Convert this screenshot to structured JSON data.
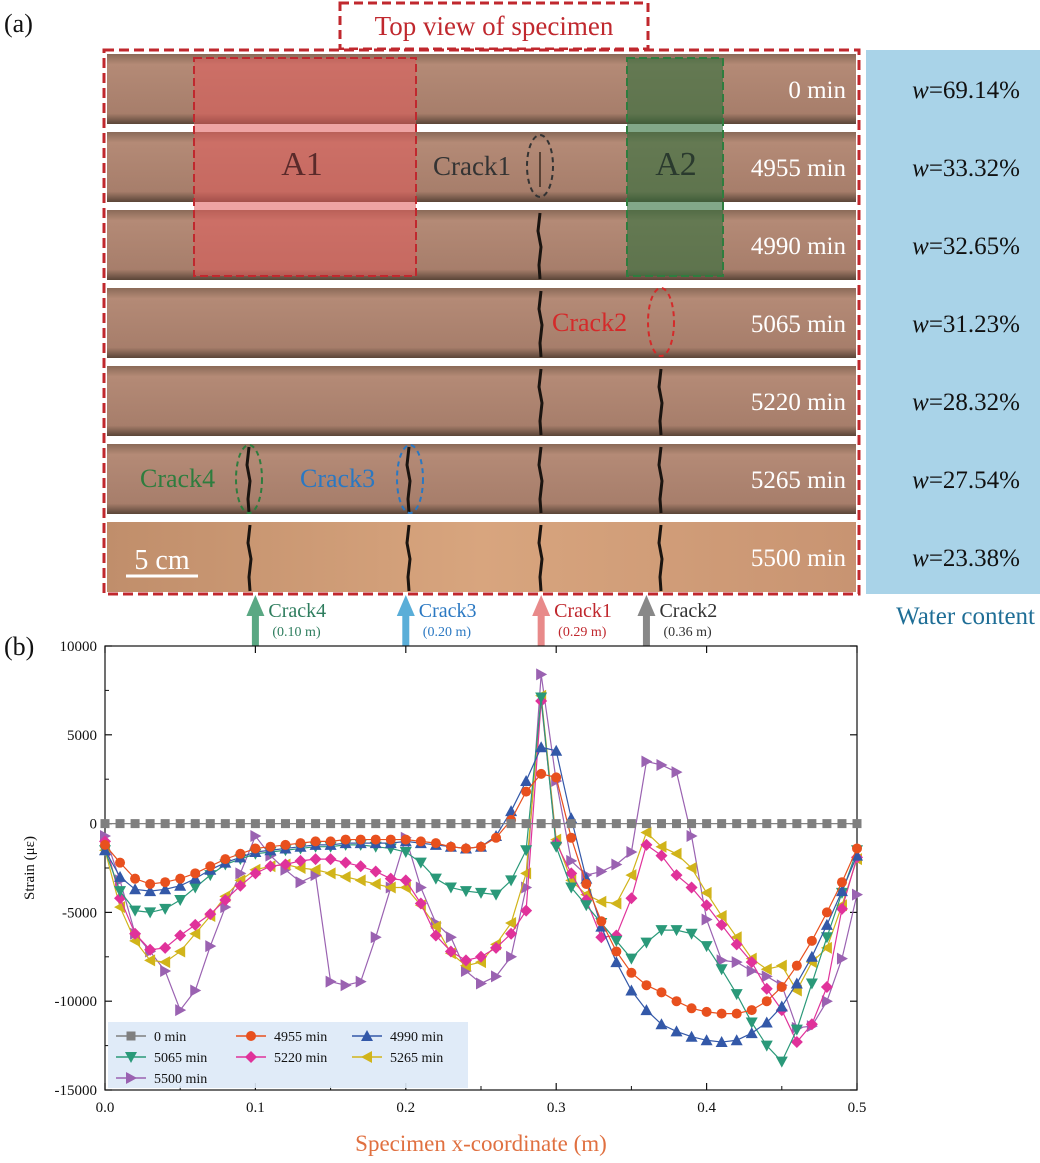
{
  "panel_a": {
    "label": "(a)",
    "title": "Top view of specimen",
    "scale_bar": "5 cm",
    "water_content_label": "Water content",
    "rows": [
      {
        "time": "0 min",
        "w_prefix": "w",
        "w_value": "=69.14%"
      },
      {
        "time": "4955 min",
        "w_prefix": "w",
        "w_value": "=33.32%"
      },
      {
        "time": "4990 min",
        "w_prefix": "w",
        "w_value": "=32.65%"
      },
      {
        "time": "5065 min",
        "w_prefix": "w",
        "w_value": "=31.23%"
      },
      {
        "time": "5220 min",
        "w_prefix": "w",
        "w_value": "=28.32%"
      },
      {
        "time": "5265 min",
        "w_prefix": "w",
        "w_value": "=27.54%"
      },
      {
        "time": "5500 min",
        "w_prefix": "w",
        "w_value": "=23.38%"
      }
    ],
    "regions": [
      {
        "label": "A1",
        "color": "#e05a5a"
      },
      {
        "label": "A2",
        "color": "#2e7d3e"
      }
    ],
    "crack_marks": [
      {
        "label": "Crack1",
        "color": "#333333"
      },
      {
        "label": "Crack2",
        "color": "#d42a2a"
      },
      {
        "label": "Crack3",
        "color": "#2a78c2"
      },
      {
        "label": "Crack4",
        "color": "#2e7d3e"
      }
    ]
  },
  "panel_b": {
    "label": "(b)",
    "arrows": [
      {
        "name": "Crack4",
        "position": "(0.10 m)",
        "x": 0.1,
        "color": "#5aa883"
      },
      {
        "name": "Crack3",
        "position": "(0.20 m)",
        "x": 0.2,
        "color": "#5aaed8"
      },
      {
        "name": "Crack1",
        "position": "(0.29 m)",
        "x": 0.29,
        "color": "#e88a8a"
      },
      {
        "name": "Crack2",
        "position": "(0.36 m)",
        "x": 0.36,
        "color": "#888888"
      }
    ]
  },
  "chart_data": {
    "type": "line",
    "xlabel": "Specimen x-coordinate (m)",
    "ylabel": "Strain (με)",
    "xlim": [
      0,
      0.5
    ],
    "ylim": [
      -15000,
      10000
    ],
    "x_ticks": [
      "0.0",
      "0.1",
      "0.2",
      "0.3",
      "0.4",
      "0.5"
    ],
    "y_ticks": [
      "10000",
      "5000",
      "0",
      "-5000",
      "-10000",
      "-15000"
    ],
    "legend_position": "bottom-left",
    "x": [
      0.0,
      0.01,
      0.02,
      0.03,
      0.04,
      0.05,
      0.06,
      0.07,
      0.08,
      0.09,
      0.1,
      0.11,
      0.12,
      0.13,
      0.14,
      0.15,
      0.16,
      0.17,
      0.18,
      0.19,
      0.2,
      0.21,
      0.22,
      0.23,
      0.24,
      0.25,
      0.26,
      0.27,
      0.28,
      0.29,
      0.3,
      0.31,
      0.32,
      0.33,
      0.34,
      0.35,
      0.36,
      0.37,
      0.38,
      0.39,
      0.4,
      0.41,
      0.42,
      0.43,
      0.44,
      0.45,
      0.46,
      0.47,
      0.48,
      0.49,
      0.5
    ],
    "series": [
      {
        "name": "0 min",
        "color": "#7f7f7f",
        "marker": "square",
        "values": [
          0,
          0,
          0,
          0,
          0,
          0,
          0,
          0,
          0,
          0,
          0,
          0,
          0,
          0,
          0,
          0,
          0,
          0,
          0,
          0,
          0,
          0,
          0,
          0,
          0,
          0,
          0,
          0,
          0,
          0,
          0,
          0,
          0,
          0,
          0,
          0,
          0,
          0,
          0,
          0,
          0,
          0,
          0,
          0,
          0,
          0,
          0,
          0,
          0,
          0,
          0
        ]
      },
      {
        "name": "4955 min",
        "color": "#e8501e",
        "marker": "circle",
        "values": [
          -1200,
          -2200,
          -3100,
          -3400,
          -3300,
          -3100,
          -2800,
          -2400,
          -2000,
          -1700,
          -1400,
          -1300,
          -1200,
          -1100,
          -1000,
          -1000,
          -900,
          -900,
          -900,
          -900,
          -900,
          -1000,
          -1100,
          -1300,
          -1400,
          -1300,
          -800,
          200,
          1800,
          2800,
          2600,
          -800,
          -3400,
          -5500,
          -7200,
          -8400,
          -9100,
          -9500,
          -10000,
          -10400,
          -10600,
          -10700,
          -10700,
          -10500,
          -10000,
          -9200,
          -8000,
          -6600,
          -5000,
          -3300,
          -1400
        ]
      },
      {
        "name": "4990 min",
        "color": "#3358a8",
        "marker": "triangle-up",
        "values": [
          -1500,
          -3000,
          -3700,
          -3800,
          -3700,
          -3500,
          -3100,
          -2600,
          -2200,
          -1900,
          -1600,
          -1500,
          -1400,
          -1300,
          -1200,
          -1200,
          -1100,
          -1100,
          -1100,
          -1100,
          -1000,
          -1100,
          -1200,
          -1300,
          -1400,
          -1300,
          -700,
          700,
          2400,
          4300,
          4100,
          300,
          -3100,
          -5800,
          -7800,
          -9400,
          -10500,
          -11300,
          -11700,
          -12000,
          -12200,
          -12300,
          -12200,
          -11800,
          -11200,
          -10300,
          -9000,
          -7500,
          -5700,
          -3800,
          -1800
        ]
      },
      {
        "name": "5065 min",
        "color": "#2a9979",
        "marker": "triangle-down",
        "values": [
          -1500,
          -3800,
          -4900,
          -5000,
          -4800,
          -4300,
          -3600,
          -2900,
          -2300,
          -2000,
          -1700,
          -1600,
          -1500,
          -1400,
          -1300,
          -1300,
          -1200,
          -1200,
          -1300,
          -1400,
          -1600,
          -2200,
          -3100,
          -3600,
          -3800,
          -3900,
          -4000,
          -3200,
          -1500,
          7100,
          -1300,
          -3600,
          -4600,
          -5600,
          -6600,
          -7600,
          -6700,
          -6000,
          -6000,
          -6200,
          -6900,
          -8200,
          -9600,
          -11200,
          -12500,
          -13400,
          -11600,
          -9000,
          -6400,
          -3900,
          -1500
        ]
      },
      {
        "name": "5220 min",
        "color": "#e0329a",
        "marker": "diamond",
        "values": [
          -1000,
          -4200,
          -6200,
          -7100,
          -7000,
          -6300,
          -5700,
          -5100,
          -4300,
          -3500,
          -2800,
          -2400,
          -2300,
          -2100,
          -2000,
          -2000,
          -2200,
          -2400,
          -2700,
          -3100,
          -3200,
          -4500,
          -6300,
          -7200,
          -7700,
          -7500,
          -7000,
          -6200,
          -4900,
          6900,
          -1100,
          -2800,
          -4300,
          -6400,
          -6300,
          -4200,
          -1200,
          -1800,
          -2900,
          -3600,
          -4600,
          -5700,
          -6800,
          -7800,
          -9300,
          -10500,
          -12300,
          -11300,
          -9200,
          -4800,
          -1900
        ]
      },
      {
        "name": "5265 min",
        "color": "#d1b41a",
        "marker": "triangle-left",
        "values": [
          -1500,
          -4700,
          -6600,
          -7700,
          -7800,
          -7200,
          -6200,
          -5200,
          -4100,
          -3200,
          -2600,
          -2400,
          -2300,
          -2500,
          -2600,
          -2800,
          -3000,
          -3200,
          -3400,
          -3600,
          -3600,
          -4600,
          -5800,
          -7300,
          -8000,
          -7800,
          -6800,
          -5600,
          -2800,
          7200,
          -900,
          -3200,
          -4000,
          -4400,
          -4500,
          -2900,
          -500,
          -1300,
          -1700,
          -2500,
          -3900,
          -5200,
          -6400,
          -7600,
          -8200,
          -8000,
          -9400,
          -7800,
          -7000,
          -4600,
          -2000
        ]
      },
      {
        "name": "5500 min",
        "color": "#9a62b1",
        "marker": "triangle-right",
        "values": [
          -700,
          -3200,
          -6200,
          -7200,
          -8300,
          -10500,
          -9400,
          -6900,
          -4700,
          -2800,
          -700,
          -1800,
          -2600,
          -3300,
          -2900,
          -8900,
          -9100,
          -8900,
          -6400,
          -3600,
          -800,
          -3600,
          -5600,
          -6400,
          -8300,
          -9000,
          -8600,
          -7500,
          -3600,
          8400,
          2400,
          -2100,
          -2900,
          -2700,
          -2300,
          -1600,
          3500,
          3300,
          2900,
          -700,
          -5400,
          -7700,
          -7800,
          -8300,
          -8600,
          -9100,
          -11500,
          -11400,
          -10000,
          -7600,
          -4000
        ]
      }
    ]
  }
}
